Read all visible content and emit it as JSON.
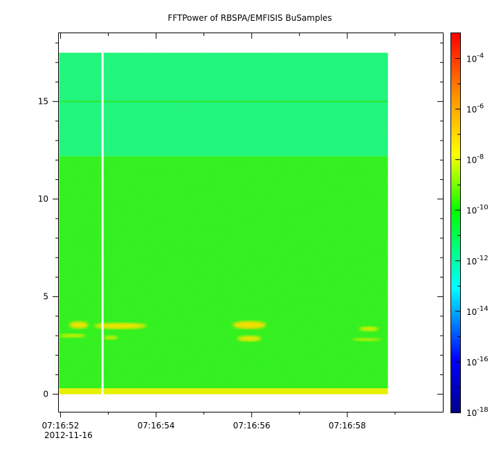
{
  "chart_data": {
    "type": "heatmap",
    "title": "FFTPower of RBSPA/EMFISIS  BuSamples",
    "xlabel": "",
    "ylabel": "",
    "x_ticks": [
      {
        "label": "07:16:52",
        "t": 52
      },
      {
        "label": "07:16:54",
        "t": 54
      },
      {
        "label": "07:16:56",
        "t": 56
      },
      {
        "label": "07:16:58",
        "t": 58
      }
    ],
    "x_minor_ticks": [
      53,
      55,
      57,
      59
    ],
    "x_date_label": "2012-11-16",
    "xlim": [
      51.95,
      60.0
    ],
    "data_xrange": [
      51.97,
      58.85
    ],
    "data_gap_t": 52.88,
    "y_ticks": [
      0,
      5,
      10,
      15
    ],
    "ylim": [
      -0.9,
      18.5
    ],
    "data_yrange": [
      0,
      17.5
    ],
    "colorbar": {
      "scale": "log",
      "range": [
        1e-18,
        0.001
      ],
      "ticks": [
        {
          "base": "10",
          "exp": "-4",
          "value": 0.0001
        },
        {
          "base": "10",
          "exp": "-6",
          "value": 1e-06
        },
        {
          "base": "10",
          "exp": "-8",
          "value": 1e-08
        },
        {
          "base": "10",
          "exp": "-10",
          "value": 1e-10
        },
        {
          "base": "10",
          "exp": "-12",
          "value": 1e-12
        },
        {
          "base": "10",
          "exp": "-14",
          "value": 1e-14
        },
        {
          "base": "10",
          "exp": "-16",
          "value": 1e-16
        },
        {
          "base": "10",
          "exp": "-18",
          "value": 1e-18
        }
      ],
      "colors": [
        "#00008b",
        "#0000ff",
        "#00ffff",
        "#00ff00",
        "#ffff00",
        "#ff8c00",
        "#ff0000"
      ]
    },
    "bands": [
      {
        "y_from": 12.2,
        "y_to": 17.5,
        "color": "#21f57d",
        "power": 3e-13
      },
      {
        "y_from": 0.3,
        "y_to": 12.2,
        "color": "#33f020",
        "power": 1e-10
      },
      {
        "y_from": 0,
        "y_to": 0.3,
        "color": "#e6f000",
        "power": 1e-08
      }
    ],
    "lines": [
      {
        "y": 15.0,
        "color": "#2ee82a"
      }
    ],
    "features": [
      {
        "t": 52.38,
        "y": 3.55,
        "dt": 0.2,
        "dy": 0.18,
        "color": "#f0e400"
      },
      {
        "t": 52.25,
        "y": 3.0,
        "dt": 0.28,
        "dy": 0.1,
        "color": "#cff000"
      },
      {
        "t": 53.25,
        "y": 3.5,
        "dt": 0.55,
        "dy": 0.16,
        "color": "#efe500"
      },
      {
        "t": 53.05,
        "y": 2.9,
        "dt": 0.15,
        "dy": 0.1,
        "color": "#d0ee00"
      },
      {
        "t": 55.95,
        "y": 3.55,
        "dt": 0.35,
        "dy": 0.2,
        "color": "#f7dd00"
      },
      {
        "t": 55.95,
        "y": 2.85,
        "dt": 0.25,
        "dy": 0.15,
        "color": "#e8e800"
      },
      {
        "t": 58.45,
        "y": 3.35,
        "dt": 0.2,
        "dy": 0.12,
        "color": "#d8ee00"
      },
      {
        "t": 58.4,
        "y": 2.8,
        "dt": 0.3,
        "dy": 0.08,
        "color": "#c6f000"
      }
    ]
  }
}
